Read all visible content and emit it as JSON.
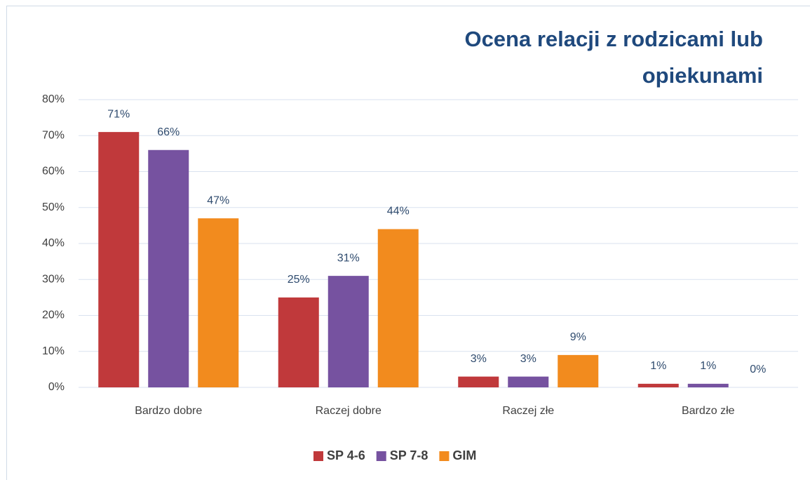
{
  "chart_data": {
    "type": "bar",
    "title": "Ocena relacji z rodzicami lub opiekunami",
    "categories": [
      "Bardzo dobre",
      "Raczej dobre",
      "Raczej złe",
      "Bardzo złe"
    ],
    "series": [
      {
        "name": "SP 4-6",
        "color": "#c0393b",
        "values": [
          71,
          25,
          3,
          1
        ],
        "value_labels": [
          "71%",
          "25%",
          "3%",
          "1%"
        ]
      },
      {
        "name": "SP 7-8",
        "color": "#7652a0",
        "values": [
          66,
          31,
          3,
          1
        ],
        "value_labels": [
          "66%",
          "31%",
          "3%",
          "1%"
        ]
      },
      {
        "name": "GIM",
        "color": "#f28b1e",
        "values": [
          47,
          44,
          9,
          0
        ],
        "value_labels": [
          "47%",
          "44%",
          "9%",
          "0%"
        ]
      }
    ],
    "ylim": [
      0,
      80
    ],
    "yticks": [
      {
        "value": 0,
        "label": "0%"
      },
      {
        "value": 10,
        "label": "10%"
      },
      {
        "value": 20,
        "label": "20%"
      },
      {
        "value": 30,
        "label": "30%"
      },
      {
        "value": 40,
        "label": "40%"
      },
      {
        "value": 50,
        "label": "50%"
      },
      {
        "value": 60,
        "label": "60%"
      },
      {
        "value": 70,
        "label": "70%"
      },
      {
        "value": 80,
        "label": "80%"
      }
    ],
    "grid": true,
    "legend": "bottom"
  }
}
